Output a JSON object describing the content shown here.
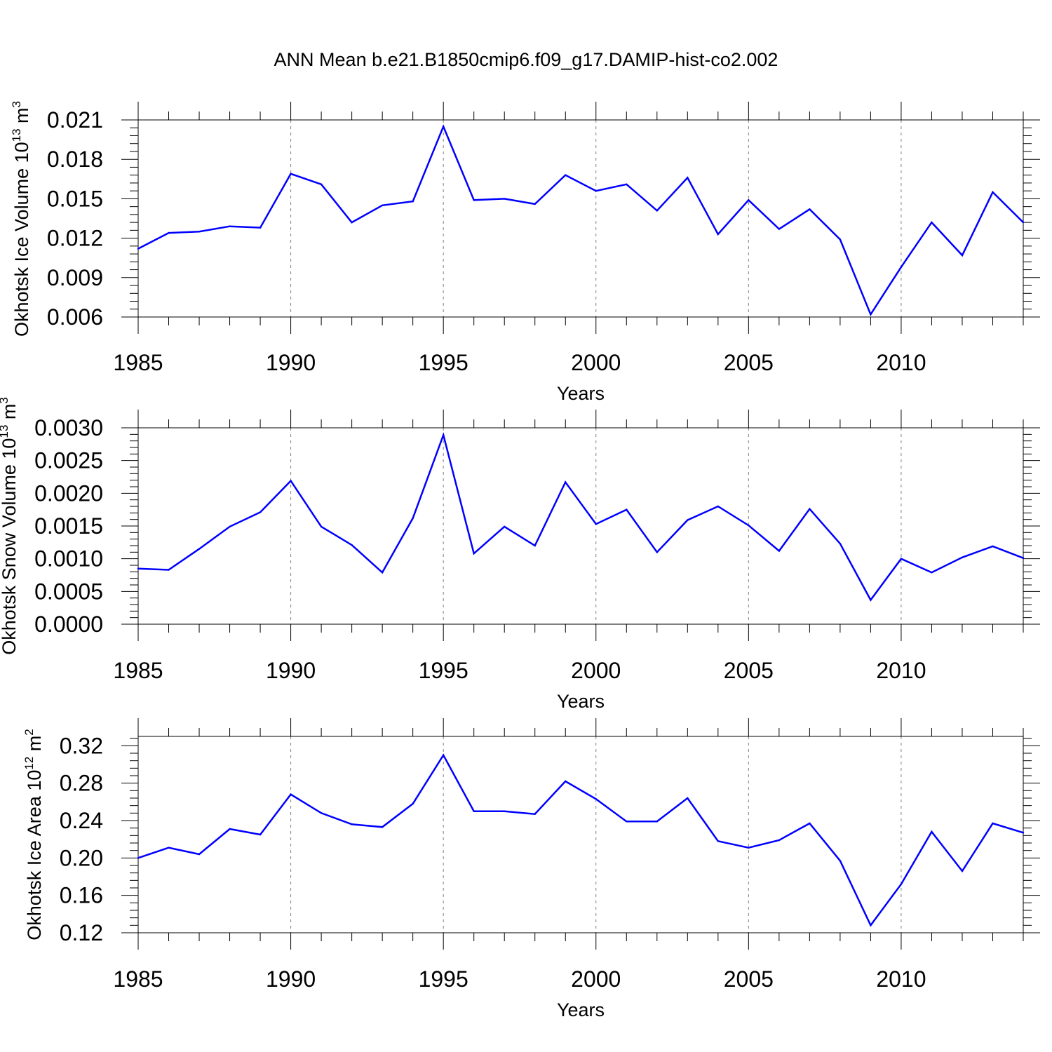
{
  "title": "ANN Mean b.e21.B1850cmip6.f09_g17.DAMIP-hist-co2.002",
  "chart_data": [
    {
      "type": "line",
      "title": "ANN Mean b.e21.B1850cmip6.f09_g17.DAMIP-hist-co2.002",
      "xlabel": "Years",
      "ylabel_main": "Okhotsk Ice Volume 10",
      "ylabel_exp": "13",
      "ylabel_unit": " m",
      "ylabel_unit_exp": "3",
      "xlim": [
        1985,
        2014
      ],
      "ylim": [
        0.006,
        0.021
      ],
      "x_ticks": [
        1985,
        1990,
        1995,
        2000,
        2005,
        2010
      ],
      "y_ticks": [
        "0.006",
        "0.009",
        "0.012",
        "0.015",
        "0.018",
        "0.021"
      ],
      "y_tick_values": [
        0.006,
        0.009,
        0.012,
        0.015,
        0.018,
        0.021
      ],
      "grid": "vertical dashed at major x ticks",
      "line_color": "#0000ff",
      "x": [
        1985,
        1986,
        1987,
        1988,
        1989,
        1990,
        1991,
        1992,
        1993,
        1994,
        1995,
        1996,
        1997,
        1998,
        1999,
        2000,
        2001,
        2002,
        2003,
        2004,
        2005,
        2006,
        2007,
        2008,
        2009,
        2010,
        2011,
        2012,
        2013,
        2014
      ],
      "y": [
        0.0112,
        0.0124,
        0.0125,
        0.0129,
        0.0128,
        0.0169,
        0.0161,
        0.0132,
        0.0145,
        0.0148,
        0.0205,
        0.0149,
        0.015,
        0.0146,
        0.0168,
        0.0156,
        0.0161,
        0.0141,
        0.0166,
        0.0123,
        0.0149,
        0.0127,
        0.0142,
        0.0119,
        0.0062,
        0.0098,
        0.0132,
        0.0107,
        0.0155,
        0.0132
      ]
    },
    {
      "type": "line",
      "xlabel": "Years",
      "ylabel_main": "Okhotsk Snow Volume 10",
      "ylabel_exp": "13",
      "ylabel_unit": " m",
      "ylabel_unit_exp": "3",
      "xlim": [
        1985,
        2014
      ],
      "ylim": [
        0.0,
        0.003
      ],
      "x_ticks": [
        1985,
        1990,
        1995,
        2000,
        2005,
        2010
      ],
      "y_ticks": [
        "0.0000",
        "0.0005",
        "0.0010",
        "0.0015",
        "0.0020",
        "0.0025",
        "0.0030"
      ],
      "y_tick_values": [
        0.0,
        0.0005,
        0.001,
        0.0015,
        0.002,
        0.0025,
        0.003
      ],
      "grid": "vertical dashed at major x ticks",
      "line_color": "#0000ff",
      "x": [
        1985,
        1986,
        1987,
        1988,
        1989,
        1990,
        1991,
        1992,
        1993,
        1994,
        1995,
        1996,
        1997,
        1998,
        1999,
        2000,
        2001,
        2002,
        2003,
        2004,
        2005,
        2006,
        2007,
        2008,
        2009,
        2010,
        2011,
        2012,
        2013,
        2014
      ],
      "y": [
        0.00085,
        0.00083,
        0.00115,
        0.00149,
        0.00171,
        0.00219,
        0.00149,
        0.00121,
        0.00079,
        0.00162,
        0.00289,
        0.00108,
        0.00149,
        0.0012,
        0.00217,
        0.00153,
        0.00175,
        0.0011,
        0.00159,
        0.0018,
        0.00151,
        0.00112,
        0.00176,
        0.00123,
        0.00037,
        0.001,
        0.00079,
        0.00102,
        0.00119,
        0.00101
      ]
    },
    {
      "type": "line",
      "xlabel": "Years",
      "ylabel_main": "Okhotsk Ice Area 10",
      "ylabel_exp": "12",
      "ylabel_unit": " m",
      "ylabel_unit_exp": "2",
      "xlim": [
        1985,
        2014
      ],
      "ylim": [
        0.12,
        0.33
      ],
      "x_ticks": [
        1985,
        1990,
        1995,
        2000,
        2005,
        2010
      ],
      "y_ticks": [
        "0.12",
        "0.16",
        "0.20",
        "0.24",
        "0.28",
        "0.32"
      ],
      "y_tick_values": [
        0.12,
        0.16,
        0.2,
        0.24,
        0.28,
        0.32
      ],
      "grid": "vertical dashed at major x ticks",
      "line_color": "#0000ff",
      "x": [
        1985,
        1986,
        1987,
        1988,
        1989,
        1990,
        1991,
        1992,
        1993,
        1994,
        1995,
        1996,
        1997,
        1998,
        1999,
        2000,
        2001,
        2002,
        2003,
        2004,
        2005,
        2006,
        2007,
        2008,
        2009,
        2010,
        2011,
        2012,
        2013,
        2014
      ],
      "y": [
        0.2,
        0.211,
        0.204,
        0.231,
        0.225,
        0.268,
        0.248,
        0.236,
        0.233,
        0.258,
        0.31,
        0.25,
        0.25,
        0.247,
        0.282,
        0.263,
        0.239,
        0.239,
        0.264,
        0.218,
        0.211,
        0.219,
        0.237,
        0.197,
        0.128,
        0.172,
        0.228,
        0.186,
        0.237,
        0.227
      ]
    }
  ]
}
